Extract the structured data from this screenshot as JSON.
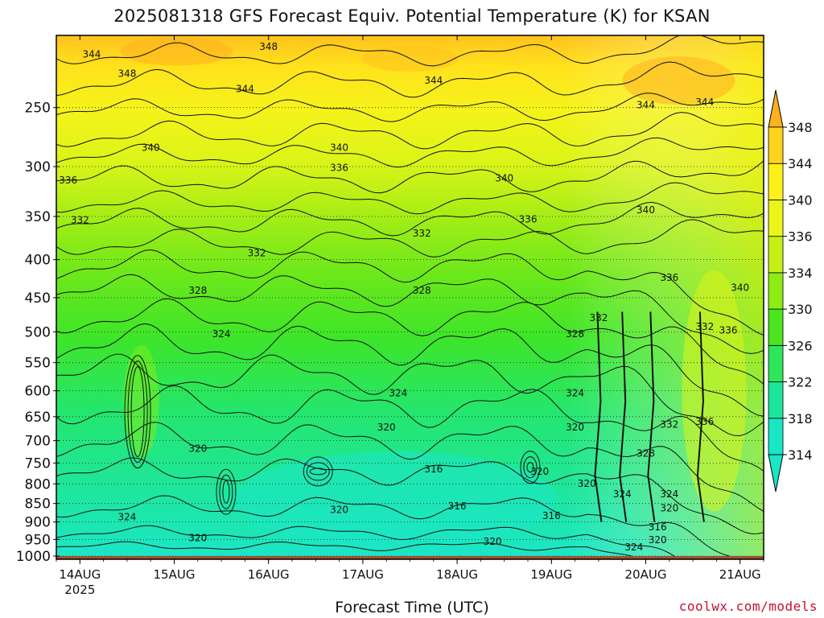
{
  "chart_data": {
    "type": "heatmap",
    "title": "2025081318 GFS Forecast Equiv. Potential Temperature (K) for KSAN",
    "xlabel": "Forecast Time (UTC)",
    "ylabel": "",
    "x_ticks": [
      "14AUG",
      "15AUG",
      "16AUG",
      "17AUG",
      "18AUG",
      "19AUG",
      "20AUG",
      "21AUG"
    ],
    "x_year_label": "2025",
    "x_range": [
      "2025-08-13T18:00Z",
      "2025-08-21T06:00Z"
    ],
    "y_ticks": [
      250,
      300,
      350,
      400,
      450,
      500,
      550,
      600,
      650,
      700,
      750,
      800,
      850,
      900,
      950,
      1000
    ],
    "y_range_hPa": [
      200,
      1010
    ],
    "y_scale": "log",
    "y_inverted": true,
    "grid": "dotted at every 50 hPa",
    "colorbar": {
      "levels": [
        314,
        318,
        322,
        326,
        330,
        334,
        336,
        340,
        344,
        348
      ],
      "colors": [
        "#19e6c4",
        "#1ce69a",
        "#2ee65a",
        "#4ae51e",
        "#8cec14",
        "#c4f016",
        "#ecf51a",
        "#fff01a",
        "#ffd21e",
        "#ffb01e"
      ],
      "placement": "right",
      "extend": "both"
    },
    "surface_band_color": "#a0522d",
    "contour_labels": [
      {
        "t": "2025-08-14T03:00Z",
        "p": 212,
        "v": 344
      },
      {
        "t": "2025-08-14T12:00Z",
        "p": 225,
        "v": 348
      },
      {
        "t": "2025-08-16T00:00Z",
        "p": 207,
        "v": 348
      },
      {
        "t": "2025-08-15T18:00Z",
        "p": 236,
        "v": 344
      },
      {
        "t": "2025-08-17T18:00Z",
        "p": 230,
        "v": 344
      },
      {
        "t": "2025-08-20T00:00Z",
        "p": 248,
        "v": 344
      },
      {
        "t": "2025-08-20T15:00Z",
        "p": 246,
        "v": 344
      },
      {
        "t": "2025-08-14T18:00Z",
        "p": 283,
        "v": 340
      },
      {
        "t": "2025-08-16T18:00Z",
        "p": 283,
        "v": 340
      },
      {
        "t": "2025-08-18T12:00Z",
        "p": 311,
        "v": 340
      },
      {
        "t": "2025-08-20T00:00Z",
        "p": 343,
        "v": 340
      },
      {
        "t": "2025-08-21T00:00Z",
        "p": 436,
        "v": 340
      },
      {
        "t": "2025-08-13T21:00Z",
        "p": 313,
        "v": 336
      },
      {
        "t": "2025-08-16T18:00Z",
        "p": 301,
        "v": 336
      },
      {
        "t": "2025-08-18T18:00Z",
        "p": 353,
        "v": 336
      },
      {
        "t": "2025-08-20T06:00Z",
        "p": 423,
        "v": 336
      },
      {
        "t": "2025-08-20T21:00Z",
        "p": 498,
        "v": 336
      },
      {
        "t": "2025-08-20T15:00Z",
        "p": 660,
        "v": 336
      },
      {
        "t": "2025-08-14T00:00Z",
        "p": 354,
        "v": 332
      },
      {
        "t": "2025-08-15T21:00Z",
        "p": 392,
        "v": 332
      },
      {
        "t": "2025-08-17T15:00Z",
        "p": 369,
        "v": 332
      },
      {
        "t": "2025-08-19T12:00Z",
        "p": 479,
        "v": 332
      },
      {
        "t": "2025-08-20T15:00Z",
        "p": 492,
        "v": 332
      },
      {
        "t": "2025-08-20T06:00Z",
        "p": 666,
        "v": 332
      },
      {
        "t": "2025-08-15T06:00Z",
        "p": 440,
        "v": 328
      },
      {
        "t": "2025-08-17T15:00Z",
        "p": 440,
        "v": 328
      },
      {
        "t": "2025-08-19T06:00Z",
        "p": 503,
        "v": 328
      },
      {
        "t": "2025-08-20T00:00Z",
        "p": 728,
        "v": 328
      },
      {
        "t": "2025-08-15T12:00Z",
        "p": 503,
        "v": 324
      },
      {
        "t": "2025-08-17T09:00Z",
        "p": 604,
        "v": 324
      },
      {
        "t": "2025-08-19T06:00Z",
        "p": 604,
        "v": 324
      },
      {
        "t": "2025-08-19T18:00Z",
        "p": 826,
        "v": 324
      },
      {
        "t": "2025-08-20T06:00Z",
        "p": 826,
        "v": 324
      },
      {
        "t": "2025-08-14T12:00Z",
        "p": 886,
        "v": 324
      },
      {
        "t": "2025-08-19T21:00Z",
        "p": 973,
        "v": 324
      },
      {
        "t": "2025-08-15T06:00Z",
        "p": 717,
        "v": 320
      },
      {
        "t": "2025-08-17T06:00Z",
        "p": 672,
        "v": 320
      },
      {
        "t": "2025-08-19T06:00Z",
        "p": 672,
        "v": 320
      },
      {
        "t": "2025-08-18T21:00Z",
        "p": 770,
        "v": 320
      },
      {
        "t": "2025-08-19T09:00Z",
        "p": 799,
        "v": 320
      },
      {
        "t": "2025-08-16T18:00Z",
        "p": 867,
        "v": 320
      },
      {
        "t": "2025-08-20T06:00Z",
        "p": 862,
        "v": 320
      },
      {
        "t": "2025-08-15T06:00Z",
        "p": 946,
        "v": 320
      },
      {
        "t": "2025-08-18T09:00Z",
        "p": 956,
        "v": 320
      },
      {
        "t": "2025-08-20T03:00Z",
        "p": 952,
        "v": 320
      },
      {
        "t": "2025-08-17T18:00Z",
        "p": 764,
        "v": 316
      },
      {
        "t": "2025-08-18T00:00Z",
        "p": 857,
        "v": 316
      },
      {
        "t": "2025-08-19T00:00Z",
        "p": 883,
        "v": 316
      },
      {
        "t": "2025-08-20T03:00Z",
        "p": 914,
        "v": 316
      }
    ]
  },
  "credit": "coolwx.com/models"
}
